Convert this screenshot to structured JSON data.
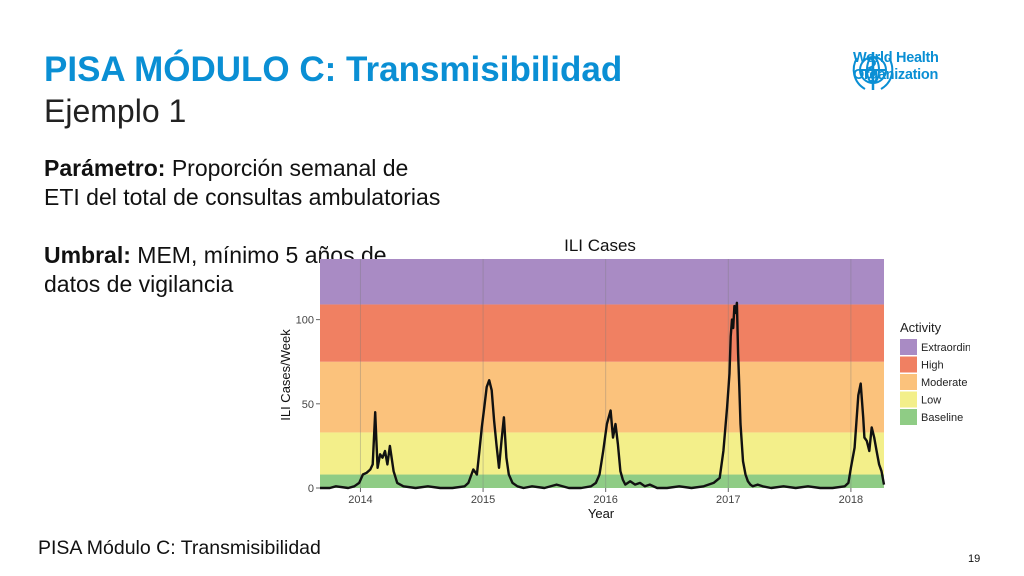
{
  "slide": {
    "title": "PISA MÓDULO C: Transmisibilidad",
    "subtitle": "Ejemplo 1",
    "parameter_label": "Parámetro:",
    "parameter_text": " Proporción semanal de ETI del total de consultas ambulatorias",
    "threshold_label": "Umbral:",
    "threshold_text": " MEM, mínimo 5 años de datos de vigilancia",
    "footer": "PISA Módulo C: Transmisibilidad",
    "page_number": "19"
  },
  "logo": {
    "line1": "World Health",
    "line2": "Organization",
    "color": "#0a8fd4"
  },
  "chart_data": {
    "type": "line",
    "title": "ILI Cases",
    "xlabel": "Year",
    "ylabel": "ILI Cases/Week",
    "xlim": [
      2013.67,
      2018.27
    ],
    "ylim": [
      0,
      136
    ],
    "xticks": [
      2014,
      2015,
      2016,
      2017,
      2018
    ],
    "xtick_labels": [
      "2014",
      "2015",
      "2016",
      "2017",
      "2018"
    ],
    "yticks": [
      0,
      50,
      100
    ],
    "ytick_labels": [
      "0",
      "50",
      "100"
    ],
    "grid": true,
    "legend_position": "right",
    "legend_title": "Activity",
    "bands": [
      {
        "name": "Baseline",
        "from": 0,
        "to": 8,
        "color": "#8fcc85"
      },
      {
        "name": "Low",
        "from": 8,
        "to": 33,
        "color": "#f3ef8a"
      },
      {
        "name": "Moderate",
        "from": 33,
        "to": 75,
        "color": "#fbc27c"
      },
      {
        "name": "High",
        "from": 75,
        "to": 109,
        "color": "#f08062"
      },
      {
        "name": "Extraordinary",
        "from": 109,
        "to": 136,
        "color": "#a98bc4"
      }
    ],
    "legend_order": [
      "Extraordinary",
      "High",
      "Moderate",
      "Low",
      "Baseline"
    ],
    "series": [
      {
        "color": "#111111",
        "x": [
          2013.67,
          2013.75,
          2013.8,
          2013.9,
          2013.95,
          2013.99,
          2014.02,
          2014.05,
          2014.08,
          2014.1,
          2014.12,
          2014.13,
          2014.14,
          2014.16,
          2014.18,
          2014.2,
          2014.22,
          2014.24,
          2014.27,
          2014.3,
          2014.35,
          2014.45,
          2014.55,
          2014.65,
          2014.75,
          2014.85,
          2014.88,
          2014.92,
          2014.95,
          2014.97,
          2014.99,
          2015.01,
          2015.03,
          2015.05,
          2015.07,
          2015.09,
          2015.11,
          2015.13,
          2015.15,
          2015.17,
          2015.19,
          2015.21,
          2015.24,
          2015.28,
          2015.33,
          2015.4,
          2015.5,
          2015.6,
          2015.7,
          2015.8,
          2015.88,
          2015.92,
          2015.95,
          2015.98,
          2016.01,
          2016.04,
          2016.06,
          2016.08,
          2016.1,
          2016.12,
          2016.14,
          2016.16,
          2016.2,
          2016.24,
          2016.28,
          2016.32,
          2016.36,
          2016.42,
          2016.5,
          2016.6,
          2016.7,
          2016.8,
          2016.88,
          2016.93,
          2016.96,
          2016.99,
          2017.01,
          2017.02,
          2017.03,
          2017.04,
          2017.05,
          2017.06,
          2017.07,
          2017.08,
          2017.09,
          2017.1,
          2017.12,
          2017.14,
          2017.16,
          2017.18,
          2017.2,
          2017.24,
          2017.28,
          2017.35,
          2017.45,
          2017.55,
          2017.65,
          2017.75,
          2017.85,
          2017.95,
          2017.98,
          2018.0,
          2018.03,
          2018.06,
          2018.08,
          2018.1,
          2018.11,
          2018.13,
          2018.15,
          2018.17,
          2018.19,
          2018.21,
          2018.23,
          2018.25,
          2018.27
        ],
        "y": [
          0,
          0,
          1,
          0,
          1,
          3,
          8,
          9,
          11,
          14,
          45,
          28,
          12,
          20,
          18,
          22,
          14,
          25,
          10,
          3,
          1,
          0,
          1,
          0,
          0,
          1,
          3,
          11,
          8,
          22,
          36,
          48,
          60,
          64,
          58,
          40,
          25,
          12,
          28,
          42,
          18,
          8,
          3,
          1,
          0,
          1,
          0,
          2,
          0,
          0,
          1,
          3,
          8,
          22,
          38,
          46,
          30,
          38,
          26,
          10,
          5,
          2,
          4,
          2,
          3,
          1,
          2,
          0,
          0,
          1,
          0,
          1,
          3,
          6,
          22,
          48,
          68,
          90,
          100,
          95,
          108,
          104,
          110,
          80,
          60,
          38,
          16,
          8,
          4,
          2,
          1,
          2,
          1,
          0,
          1,
          0,
          1,
          0,
          0,
          1,
          3,
          12,
          24,
          55,
          62,
          42,
          30,
          28,
          22,
          36,
          30,
          22,
          14,
          10,
          2
        ]
      }
    ]
  }
}
